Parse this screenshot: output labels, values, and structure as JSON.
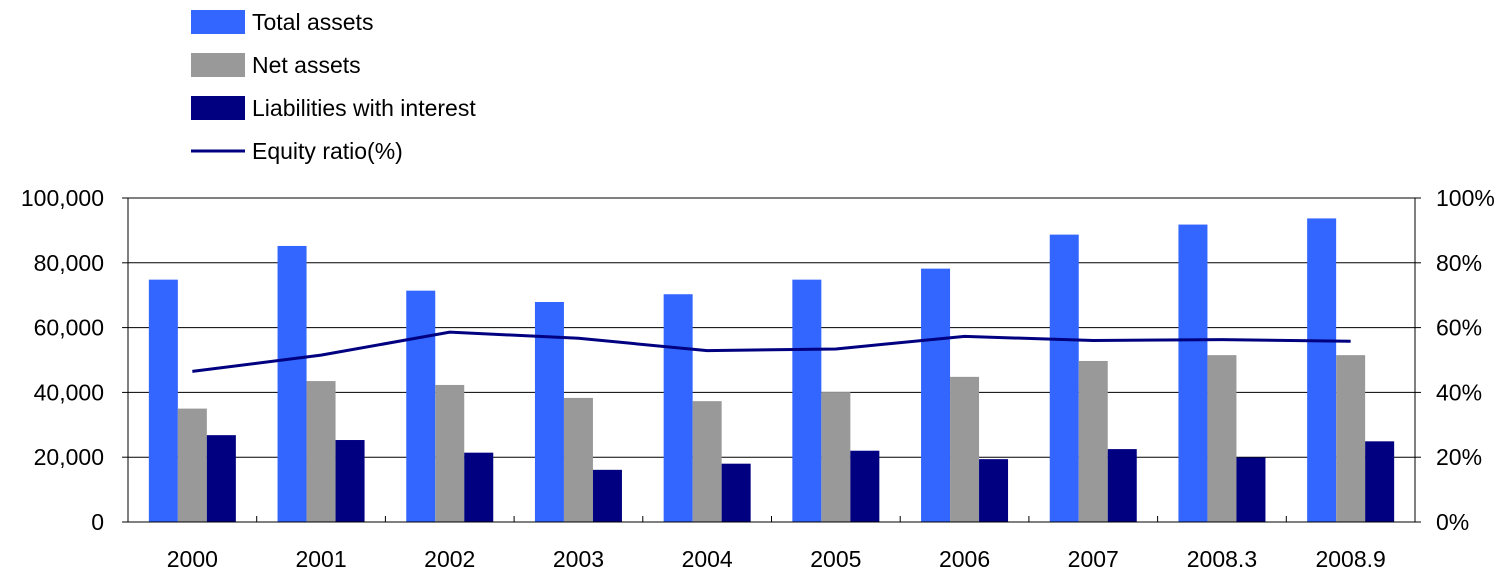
{
  "chart_data": {
    "type": "bar",
    "categories": [
      "2000",
      "2001",
      "2002",
      "2003",
      "2004",
      "2005",
      "2006",
      "2007",
      "2008.3",
      "2008.9"
    ],
    "series": [
      {
        "name": "Total assets",
        "kind": "bar",
        "axis": "left",
        "color": "#3366ff",
        "values": [
          74800,
          85200,
          71400,
          67900,
          70300,
          74800,
          78200,
          88700,
          91800,
          93700
        ]
      },
      {
        "name": "Net assets",
        "kind": "bar",
        "axis": "left",
        "color": "#999999",
        "values": [
          35000,
          43500,
          42300,
          38300,
          37300,
          40100,
          44800,
          49700,
          51500,
          51500
        ]
      },
      {
        "name": "Liabilities with interest",
        "kind": "bar",
        "axis": "left",
        "color": "#000080",
        "values": [
          26800,
          25300,
          21400,
          16100,
          18000,
          22000,
          19400,
          22500,
          19900,
          24900
        ]
      },
      {
        "name": "Equity ratio(%)",
        "kind": "line",
        "axis": "right",
        "color": "#000080",
        "values": [
          46.5,
          51.5,
          58.6,
          56.7,
          52.9,
          53.4,
          57.3,
          56.0,
          56.3,
          55.8
        ]
      }
    ],
    "left_axis": {
      "ylim": [
        0,
        100000
      ],
      "ticks": [
        0,
        20000,
        40000,
        60000,
        80000,
        100000
      ],
      "tick_labels": [
        "0",
        "20,000",
        "40,000",
        "60,000",
        "80,000",
        "100,000"
      ]
    },
    "right_axis": {
      "ylim": [
        0,
        100
      ],
      "ticks": [
        0,
        20,
        40,
        60,
        80,
        100
      ],
      "tick_labels": [
        "0%",
        "20%",
        "40%",
        "60%",
        "80%",
        "100%"
      ]
    },
    "grid": true,
    "legend_position": "top-left"
  }
}
